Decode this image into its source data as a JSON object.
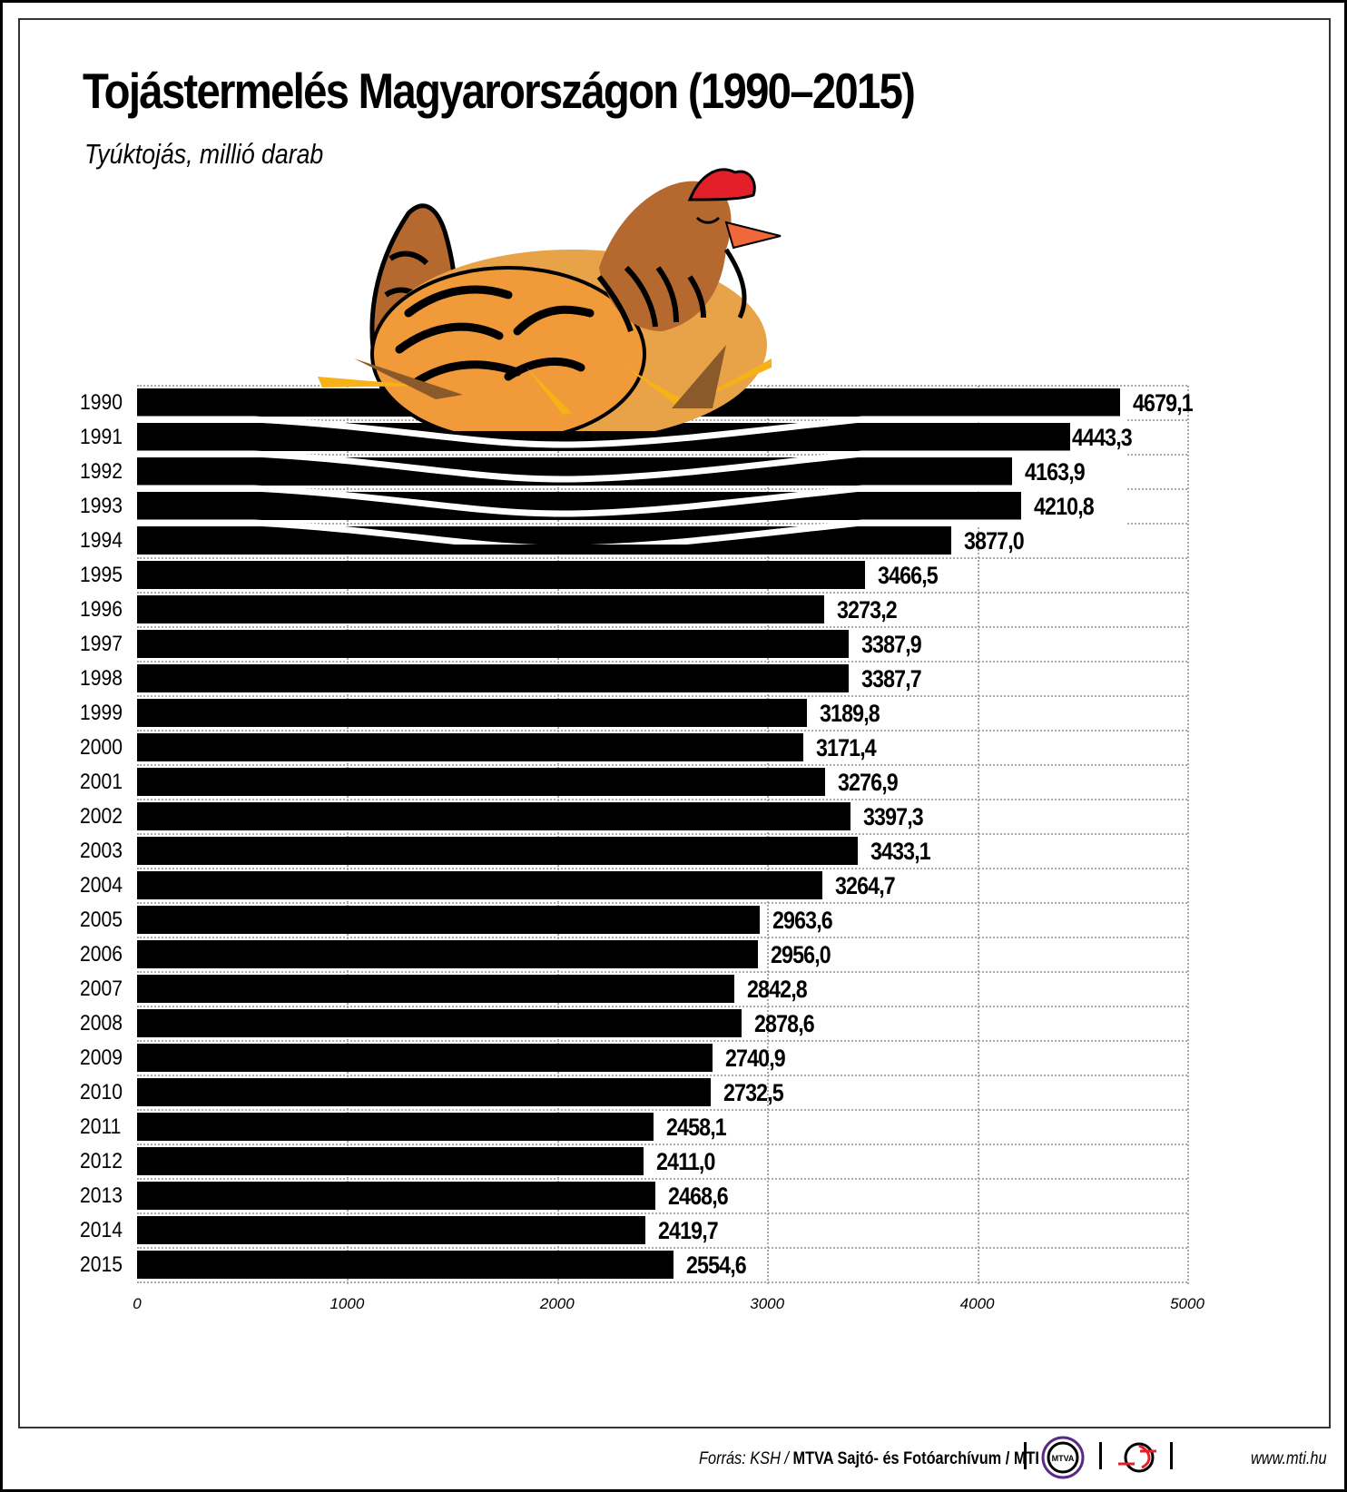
{
  "header": {
    "title": "Tojástermelés Magyarországon (1990–2015)",
    "subtitle": "Tyúktojás, millió darab"
  },
  "chart_data": {
    "type": "bar",
    "orientation": "horizontal",
    "title": "Tojástermelés Magyarországon (1990–2015)",
    "subtitle": "Tyúktojás, millió darab",
    "xlabel": "",
    "ylabel": "",
    "xlim": [
      0,
      5000
    ],
    "x_ticks": [
      "0",
      "1000",
      "2000",
      "3000",
      "4000",
      "5000"
    ],
    "grid": true,
    "categories": [
      "1990",
      "1991",
      "1992",
      "1993",
      "1994",
      "1995",
      "1996",
      "1997",
      "1998",
      "1999",
      "2000",
      "2001",
      "2002",
      "2003",
      "2004",
      "2005",
      "2006",
      "2007",
      "2008",
      "2009",
      "2010",
      "2011",
      "2012",
      "2013",
      "2014",
      "2015"
    ],
    "values": [
      4679.1,
      4443.3,
      4163.9,
      4210.8,
      3877.0,
      3466.5,
      3273.2,
      3387.9,
      3387.7,
      3189.8,
      3171.4,
      3276.9,
      3397.3,
      3433.1,
      3264.7,
      2963.6,
      2956.0,
      2842.8,
      2878.6,
      2740.9,
      2732.5,
      2458.1,
      2411.0,
      2468.6,
      2419.7,
      2554.6
    ],
    "value_labels": [
      "4679,1",
      "4443,3",
      "4163,9",
      "4210,8",
      "3877,0",
      "3466,5",
      "3273,2",
      "3387,9",
      "3387,7",
      "3189,8",
      "3171,4",
      "3276,9",
      "3397,3",
      "3433,1",
      "3264,7",
      "2963,6",
      "2956,0",
      "2842,8",
      "2878,6",
      "2740,9",
      "2732,5",
      "2458,1",
      "2411,0",
      "2468,6",
      "2419,7",
      "2554,6"
    ],
    "bar_color": "#000000",
    "illustration": "brooding hen sitting on top bars (nest)"
  },
  "colors": {
    "bar": "#000000",
    "grid": "#a9a9a9",
    "hen_body": "#f09a3a",
    "hen_body_light": "#e8a248",
    "hen_feathers": "#b5692e",
    "comb": "#e3202a",
    "beak": "#f0673a",
    "straw": "#f7b217",
    "twig": "#8b5a2b",
    "mtva_ring": "#5b2a86",
    "mti_red": "#e3202a"
  },
  "footer": {
    "source_prefix": "Forrás: KSH / ",
    "source_bold": "MTVA Sajtó- és Fotóarchívum / MTI",
    "mtva_logo_text": "MTVA",
    "url": "www.mti.hu"
  }
}
